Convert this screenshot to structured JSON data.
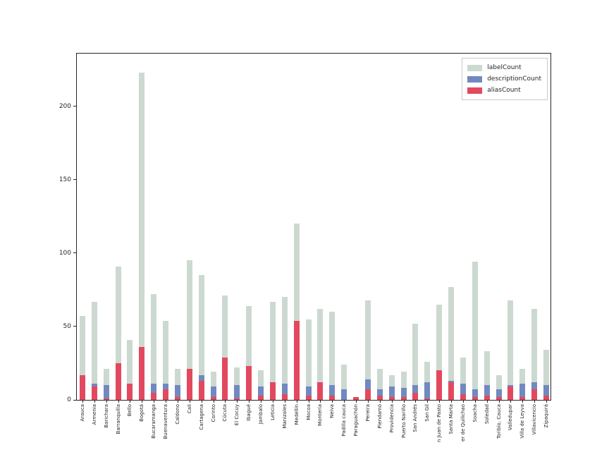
{
  "chart": {
    "y_ticks": [
      0,
      50,
      100,
      150,
      200
    ],
    "axis_color": "#262626",
    "background_color": "#ffffff"
  },
  "chart_data": {
    "type": "bar",
    "mode": "overlay",
    "title": "",
    "xlabel": "",
    "ylabel": "",
    "ylim": [
      0,
      236
    ],
    "grid": false,
    "legend_position": "upper right",
    "categories": [
      "Arauca",
      "Armenia",
      "Barichara",
      "Barranquilla",
      "Bello",
      "Bogotá",
      "Bucaramanga",
      "Buenaventura",
      "Caldono",
      "Cali",
      "Cartagena",
      "Corinto",
      "Cúcuta",
      "El Cocuy",
      "Ibagué",
      "Jambalo",
      "Leticia",
      "Manizales",
      "Medellín",
      "Mocoa",
      "Montería",
      "Neiva",
      "Padilla cauca",
      "Paraguachón",
      "Pereira",
      "Piendamó",
      "Providencia",
      "Puerto Nariño",
      "San Andrés",
      "San Gil",
      "n Juan de Pasto",
      "Santa Marta",
      "er de Quilichao",
      "Soacha",
      "Soledad",
      "Toribío, Cauca",
      "Valledupar",
      "Villa de Leyva",
      "Villavicencio",
      "Zipaquirá"
    ],
    "series": [
      {
        "name": "labelCount",
        "color": "#ccd9d1",
        "values": [
          57,
          67,
          21,
          91,
          41,
          223,
          72,
          54,
          21,
          95,
          85,
          19,
          71,
          22,
          64,
          20,
          67,
          70,
          120,
          55,
          62,
          60,
          24,
          1,
          68,
          21,
          17,
          19,
          52,
          26,
          65,
          77,
          29,
          94,
          33,
          17,
          68,
          21,
          62,
          34
        ]
      },
      {
        "name": "descriptionCount",
        "color": "#7189c0",
        "values": [
          10,
          11,
          10,
          10,
          8,
          10,
          11,
          11,
          10,
          10,
          17,
          9,
          9,
          10,
          9,
          9,
          8,
          11,
          10,
          9,
          9,
          10,
          7,
          0,
          14,
          7,
          9,
          8,
          10,
          12,
          10,
          13,
          11,
          7,
          10,
          7,
          10,
          11,
          12,
          10
        ]
      },
      {
        "name": "aliasCount",
        "color": "#e2495e",
        "values": [
          17,
          9,
          1,
          25,
          11,
          36,
          5,
          7,
          2,
          21,
          13,
          2,
          29,
          1,
          23,
          3,
          12,
          4,
          54,
          3,
          12,
          3,
          0,
          2,
          7,
          3,
          2,
          2,
          5,
          1,
          20,
          12,
          4,
          2,
          3,
          2,
          9,
          2,
          7,
          3
        ]
      }
    ]
  }
}
